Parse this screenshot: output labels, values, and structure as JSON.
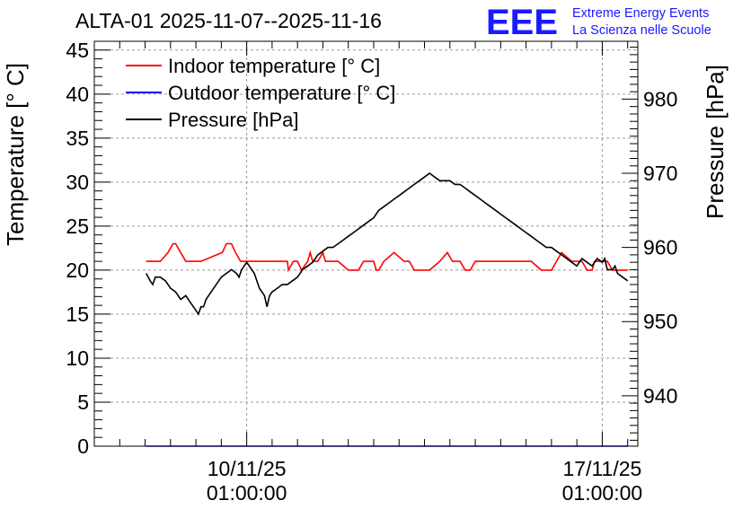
{
  "chart_data": {
    "type": "line",
    "title": "ALTA-01 2025-11-07--2025-11-16",
    "logo": {
      "letters": "EEE",
      "line1": "Extreme Energy Events",
      "line2": "La Scienza nelle Scuole"
    },
    "ylabel_left": "Temperature [° C]",
    "ylabel_right": "Pressure [hPa]",
    "xlim_days": [
      -3.0,
      7.7
    ],
    "ylim_left": [
      0,
      46
    ],
    "ylim_right": [
      933.2,
      987.8
    ],
    "left_ticks": [
      0,
      5,
      10,
      15,
      20,
      25,
      30,
      35,
      40,
      45
    ],
    "left_tick_labels": [
      "0",
      "5",
      "10",
      "15",
      "20",
      "25",
      "30",
      "35",
      "40",
      "45"
    ],
    "right_ticks": [
      940,
      950,
      960,
      970,
      980
    ],
    "right_tick_labels": [
      "940",
      "950",
      "960",
      "970",
      "980"
    ],
    "x_ticks": [
      {
        "day": 0,
        "date": "10/11/25",
        "time": "01:00:00"
      },
      {
        "day": 7,
        "date": "17/11/25",
        "time": "01:00:00"
      }
    ],
    "grid": true,
    "legend_position": "top-left",
    "colors": {
      "indoor": "#ff0000",
      "outdoor": "#0000ff",
      "pressure": "#000000",
      "logo": "#1a1aff"
    },
    "series": [
      {
        "name": "Indoor temperature [° C]",
        "color": "#ff0000",
        "axis": "left",
        "x": [
          -1.98,
          -1.7,
          -1.55,
          -1.45,
          -1.4,
          -1.3,
          -1.2,
          -0.9,
          -0.48,
          -0.4,
          -0.3,
          -0.22,
          -0.12,
          -0.05,
          0.5,
          0.8,
          0.82,
          0.92,
          1.0,
          1.08,
          1.2,
          1.25,
          1.3,
          1.4,
          1.5,
          1.55,
          1.65,
          1.8,
          2.0,
          2.2,
          2.3,
          2.5,
          2.55,
          2.6,
          2.7,
          2.9,
          3.1,
          3.2,
          3.3,
          3.6,
          3.8,
          3.95,
          4.05,
          4.2,
          4.3,
          4.4,
          4.5,
          4.6,
          4.8,
          5.0,
          5.2,
          5.4,
          5.6,
          5.8,
          6.0,
          6.1,
          6.2,
          6.4,
          6.6,
          6.7,
          6.8,
          6.85,
          6.95,
          7.0,
          7.1,
          7.2,
          7.5
        ],
        "y": [
          21,
          21,
          22,
          23,
          23,
          22,
          21,
          21,
          22,
          23,
          23,
          22,
          21,
          21,
          21,
          21,
          20,
          21,
          21,
          20,
          21,
          22,
          21,
          21,
          22,
          21,
          21,
          21,
          20,
          20,
          21,
          21,
          20,
          20,
          21,
          22,
          21,
          21,
          20,
          20,
          21,
          22,
          21,
          21,
          20,
          20,
          21,
          21,
          21,
          21,
          21,
          21,
          21,
          20,
          20,
          21,
          22,
          21,
          21,
          20,
          20,
          21,
          21,
          21,
          21,
          20,
          20
        ]
      },
      {
        "name": "Outdoor temperature [° C]",
        "color": "#0000ff",
        "axis": "left",
        "x": [
          -1.98,
          7.5
        ],
        "y": [
          0,
          0
        ]
      },
      {
        "name": "Pressure [hPa]",
        "color": "#000000",
        "axis": "right",
        "x": [
          -1.98,
          -1.9,
          -1.85,
          -1.8,
          -1.7,
          -1.6,
          -1.5,
          -1.4,
          -1.3,
          -1.2,
          -1.1,
          -1.0,
          -0.95,
          -0.9,
          -0.85,
          -0.8,
          -0.7,
          -0.6,
          -0.5,
          -0.4,
          -0.3,
          -0.2,
          -0.15,
          -0.1,
          -0.05,
          0.0,
          0.05,
          0.1,
          0.15,
          0.2,
          0.25,
          0.3,
          0.35,
          0.4,
          0.45,
          0.5,
          0.6,
          0.7,
          0.8,
          0.9,
          1.0,
          1.1,
          1.2,
          1.3,
          1.4,
          1.5,
          1.6,
          1.7,
          1.8,
          1.9,
          2.0,
          2.1,
          2.2,
          2.3,
          2.4,
          2.5,
          2.6,
          2.7,
          2.8,
          2.9,
          3.0,
          3.1,
          3.2,
          3.3,
          3.4,
          3.5,
          3.6,
          3.7,
          3.8,
          3.9,
          4.0,
          4.1,
          4.2,
          4.3,
          4.4,
          4.5,
          4.6,
          4.7,
          4.8,
          4.9,
          5.0,
          5.1,
          5.2,
          5.3,
          5.4,
          5.5,
          5.6,
          5.7,
          5.8,
          5.9,
          6.0,
          6.1,
          6.2,
          6.3,
          6.4,
          6.5,
          6.6,
          6.7,
          6.8,
          6.9,
          7.0,
          7.05,
          7.1,
          7.2,
          7.25,
          7.3,
          7.4,
          7.5
        ],
        "y": [
          956.5,
          955.5,
          955.0,
          956.0,
          956.0,
          955.5,
          954.5,
          954.0,
          953.0,
          953.5,
          952.5,
          951.5,
          951.0,
          952.0,
          952.0,
          953.0,
          954.0,
          955.0,
          956.0,
          956.5,
          957.0,
          956.5,
          956.0,
          957.0,
          957.5,
          958.0,
          957.5,
          957.0,
          956.5,
          955.5,
          954.5,
          954.0,
          953.5,
          952.0,
          953.5,
          954.0,
          954.5,
          955.0,
          955.0,
          955.5,
          956.0,
          957.0,
          957.5,
          958.0,
          959.0,
          959.5,
          960.0,
          960.0,
          960.5,
          961.0,
          961.5,
          962.0,
          962.5,
          963.0,
          963.5,
          964.0,
          965.0,
          965.5,
          966.0,
          966.5,
          967.0,
          967.5,
          968.0,
          968.5,
          969.0,
          969.5,
          970.0,
          969.5,
          969.0,
          969.0,
          969.0,
          968.5,
          968.5,
          968.0,
          967.5,
          967.0,
          966.5,
          966.0,
          965.5,
          965.0,
          964.5,
          964.0,
          963.5,
          963.0,
          962.5,
          962.0,
          961.5,
          961.0,
          960.5,
          960.0,
          960.0,
          959.5,
          959.0,
          958.5,
          958.0,
          957.5,
          958.5,
          958.0,
          957.5,
          958.5,
          958.0,
          958.5,
          957.0,
          957.0,
          957.5,
          956.5,
          956.0,
          955.5
        ]
      }
    ]
  }
}
